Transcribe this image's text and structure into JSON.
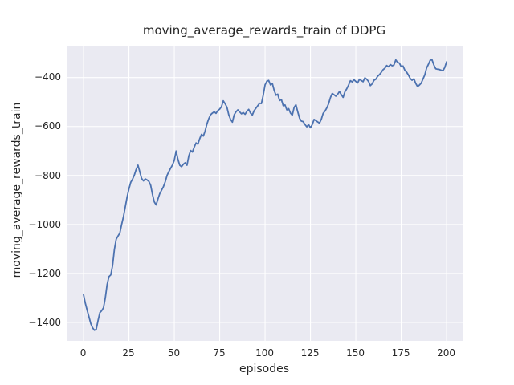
{
  "figure": {
    "background": "#ffffff"
  },
  "chart_data": {
    "type": "line",
    "title": "moving_average_rewards_train of DDPG",
    "xlabel": "episodes",
    "ylabel": "moving_average_rewards_train",
    "legend": "none",
    "grid": true,
    "grid_color": "#ffffff",
    "plot_bg": "#eaeaf2",
    "line_color": "#4c72b0",
    "line_width": 1.8,
    "xlim": [
      -9.3,
      208.9
    ],
    "ylim": [
      -1478,
      -270
    ],
    "xticks": [
      {
        "v": 0,
        "label": "0"
      },
      {
        "v": 25,
        "label": "25"
      },
      {
        "v": 50,
        "label": "50"
      },
      {
        "v": 75,
        "label": "75"
      },
      {
        "v": 100,
        "label": "100"
      },
      {
        "v": 125,
        "label": "125"
      },
      {
        "v": 150,
        "label": "150"
      },
      {
        "v": 175,
        "label": "175"
      },
      {
        "v": 200,
        "label": "200"
      }
    ],
    "yticks": [
      {
        "v": -400,
        "label": "−400"
      },
      {
        "v": -600,
        "label": "−600"
      },
      {
        "v": -800,
        "label": "−800"
      },
      {
        "v": -1000,
        "label": "−1000"
      },
      {
        "v": -1200,
        "label": "−1200"
      },
      {
        "v": -1400,
        "label": "−1400"
      }
    ],
    "x": [
      0,
      1,
      2,
      3,
      4,
      5,
      6,
      7,
      8,
      9,
      10,
      11,
      12,
      13,
      14,
      15,
      16,
      17,
      18,
      19,
      20,
      21,
      22,
      23,
      24,
      25,
      26,
      27,
      28,
      29,
      30,
      31,
      32,
      33,
      34,
      35,
      36,
      37,
      38,
      39,
      40,
      41,
      42,
      43,
      44,
      45,
      46,
      47,
      48,
      49,
      50,
      51,
      52,
      53,
      54,
      55,
      56,
      57,
      58,
      59,
      60,
      61,
      62,
      63,
      64,
      65,
      66,
      67,
      68,
      69,
      70,
      71,
      72,
      73,
      74,
      75,
      76,
      77,
      78,
      79,
      80,
      81,
      82,
      83,
      84,
      85,
      86,
      87,
      88,
      89,
      90,
      91,
      92,
      93,
      94,
      95,
      96,
      97,
      98,
      99,
      100,
      101,
      102,
      103,
      104,
      105,
      106,
      107,
      108,
      109,
      110,
      111,
      112,
      113,
      114,
      115,
      116,
      117,
      118,
      119,
      120,
      121,
      122,
      123,
      124,
      125,
      126,
      127,
      128,
      129,
      130,
      131,
      132,
      133,
      134,
      135,
      136,
      137,
      138,
      139,
      140,
      141,
      142,
      143,
      144,
      145,
      146,
      147,
      148,
      149,
      150,
      151,
      152,
      153,
      154,
      155,
      156,
      157,
      158,
      159,
      160,
      161,
      162,
      163,
      164,
      165,
      166,
      167,
      168,
      169,
      170,
      171,
      172,
      173,
      174,
      175,
      176,
      177,
      178,
      179,
      180,
      181,
      182,
      183,
      184,
      185,
      186,
      187,
      188,
      189,
      190,
      191,
      192,
      193,
      194,
      195,
      196,
      197,
      198,
      199,
      200
    ],
    "values": [
      -1287,
      -1322,
      -1350,
      -1377,
      -1405,
      -1422,
      -1432,
      -1428,
      -1392,
      -1360,
      -1352,
      -1340,
      -1300,
      -1245,
      -1213,
      -1206,
      -1168,
      -1102,
      -1060,
      -1047,
      -1035,
      -1000,
      -968,
      -928,
      -888,
      -855,
      -828,
      -815,
      -798,
      -775,
      -758,
      -785,
      -812,
      -822,
      -814,
      -818,
      -824,
      -840,
      -878,
      -908,
      -920,
      -896,
      -874,
      -860,
      -846,
      -826,
      -800,
      -784,
      -770,
      -757,
      -738,
      -700,
      -734,
      -758,
      -764,
      -754,
      -748,
      -758,
      -720,
      -698,
      -704,
      -684,
      -667,
      -672,
      -650,
      -632,
      -639,
      -618,
      -589,
      -568,
      -552,
      -545,
      -540,
      -546,
      -535,
      -529,
      -519,
      -495,
      -507,
      -521,
      -552,
      -571,
      -582,
      -552,
      -540,
      -532,
      -540,
      -548,
      -543,
      -550,
      -538,
      -530,
      -545,
      -553,
      -535,
      -525,
      -515,
      -505,
      -506,
      -472,
      -430,
      -415,
      -412,
      -430,
      -424,
      -452,
      -472,
      -468,
      -494,
      -490,
      -515,
      -512,
      -532,
      -527,
      -545,
      -554,
      -522,
      -511,
      -540,
      -566,
      -578,
      -580,
      -592,
      -601,
      -592,
      -605,
      -592,
      -571,
      -576,
      -581,
      -586,
      -570,
      -546,
      -537,
      -524,
      -507,
      -482,
      -465,
      -470,
      -476,
      -468,
      -457,
      -470,
      -481,
      -458,
      -446,
      -431,
      -413,
      -418,
      -409,
      -416,
      -422,
      -407,
      -412,
      -417,
      -401,
      -407,
      -416,
      -433,
      -426,
      -411,
      -407,
      -395,
      -388,
      -379,
      -368,
      -362,
      -351,
      -356,
      -347,
      -352,
      -349,
      -328,
      -338,
      -341,
      -356,
      -353,
      -370,
      -378,
      -390,
      -404,
      -411,
      -405,
      -424,
      -437,
      -431,
      -423,
      -406,
      -389,
      -361,
      -346,
      -329,
      -328,
      -349,
      -364,
      -366,
      -367,
      -370,
      -372,
      -359,
      -336
    ]
  }
}
